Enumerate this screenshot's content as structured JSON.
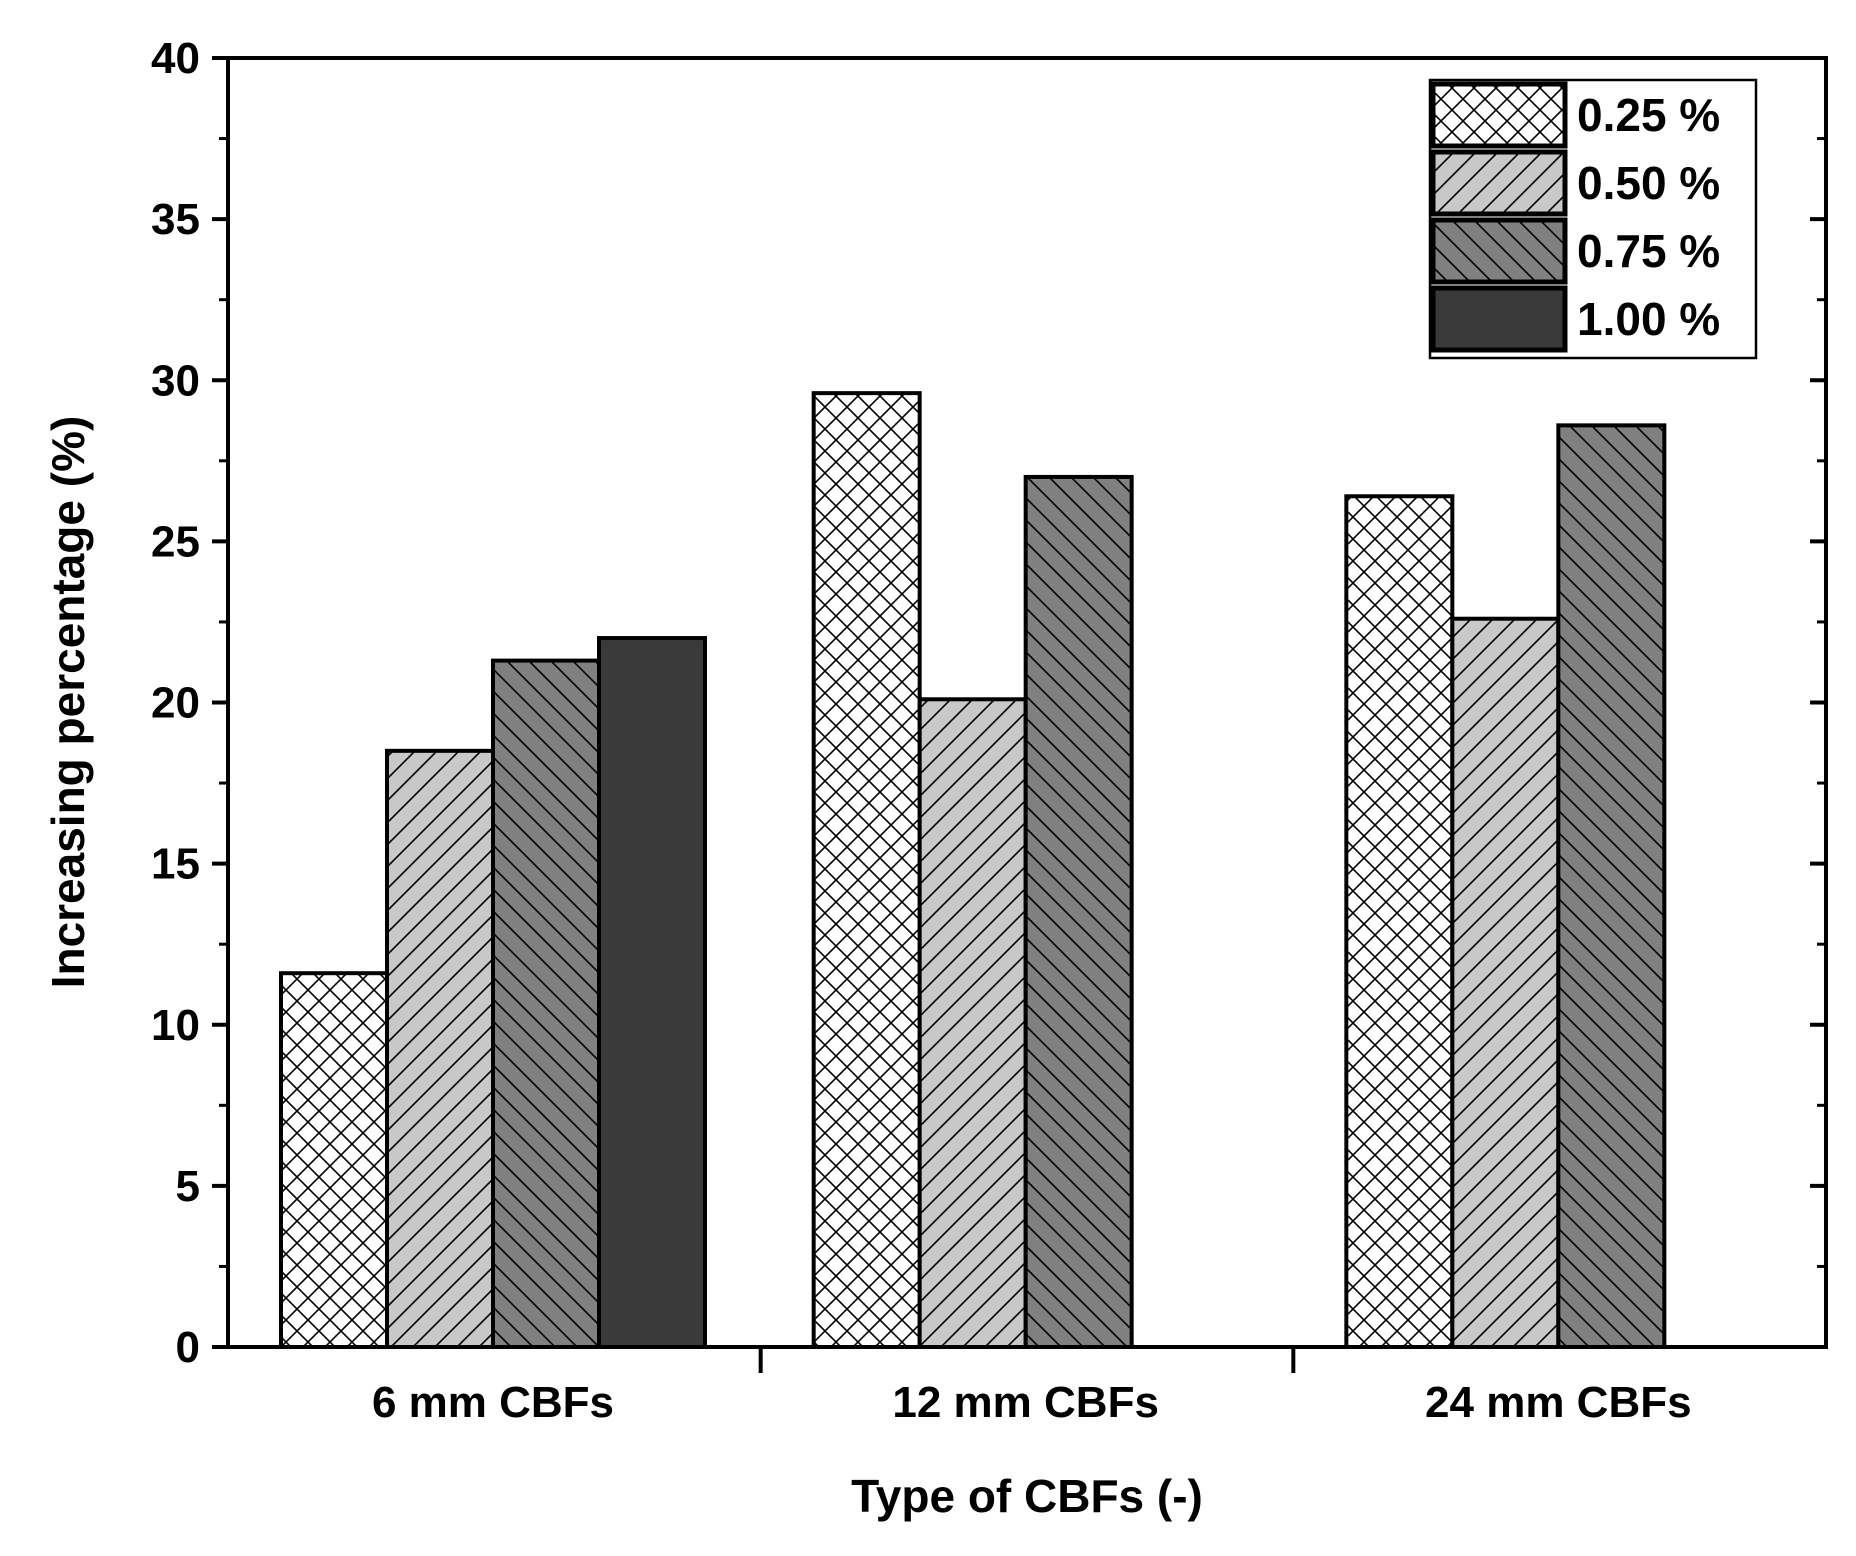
{
  "chart_data": {
    "type": "bar",
    "title": "",
    "xlabel": "Type of CBFs (-)",
    "ylabel": "Increasing percentage (%)",
    "ylim": [
      0,
      40
    ],
    "y_major_ticks": [
      0,
      5,
      10,
      15,
      20,
      25,
      30,
      35,
      40
    ],
    "y_tick_labels": [
      "0",
      "5",
      "10",
      "15",
      "20",
      "25",
      "30",
      "35",
      "40"
    ],
    "categories": [
      "6 mm CBFs",
      "12 mm CBFs",
      "24 mm CBFs"
    ],
    "series": [
      {
        "name": "0.25 %",
        "pattern": "crosshatch",
        "color": "#ffffff",
        "values": [
          11.6,
          29.6,
          26.4
        ]
      },
      {
        "name": "0.50 %",
        "pattern": "forward-diagonal",
        "color": "#c8c8c8",
        "values": [
          18.5,
          20.1,
          22.6
        ]
      },
      {
        "name": "0.75 %",
        "pattern": "back-diagonal",
        "color": "#808080",
        "values": [
          21.3,
          27.0,
          28.6
        ]
      },
      {
        "name": "1.00 %",
        "pattern": "solid",
        "color": "#3a3a3a",
        "values": [
          22.0,
          null,
          null
        ]
      }
    ],
    "grid": false,
    "legend_position": "top-right"
  }
}
